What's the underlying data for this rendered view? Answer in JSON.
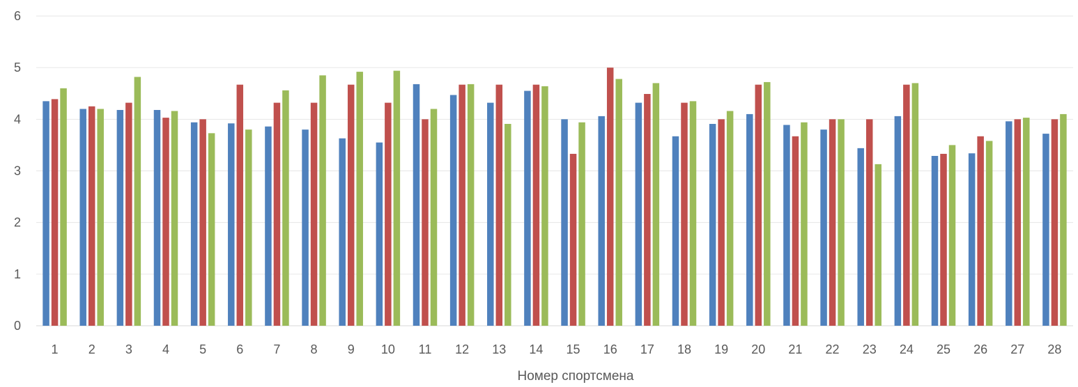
{
  "chart_data": {
    "type": "bar",
    "title": "",
    "xlabel": "Номер спортсмена",
    "ylabel": "",
    "ylim": [
      0,
      6
    ],
    "yticks": [
      0,
      1,
      2,
      3,
      4,
      5,
      6
    ],
    "grid": true,
    "legend": "none",
    "categories": [
      "1",
      "2",
      "3",
      "4",
      "5",
      "6",
      "7",
      "8",
      "9",
      "10",
      "11",
      "12",
      "13",
      "14",
      "15",
      "16",
      "17",
      "18",
      "19",
      "20",
      "21",
      "22",
      "23",
      "24",
      "25",
      "26",
      "27",
      "28"
    ],
    "series": [
      {
        "color": "#4F81BD",
        "values": [
          4.35,
          4.2,
          4.18,
          4.18,
          3.94,
          3.92,
          3.86,
          3.8,
          3.63,
          3.55,
          4.68,
          4.47,
          4.32,
          4.55,
          4.0,
          4.06,
          4.32,
          3.67,
          3.91,
          4.1,
          3.89,
          3.8,
          3.44,
          4.06,
          3.29,
          3.34,
          3.96,
          3.72
        ]
      },
      {
        "color": "#C0504D",
        "values": [
          4.39,
          4.25,
          4.32,
          4.03,
          4.0,
          4.67,
          4.32,
          4.32,
          4.67,
          4.32,
          4.0,
          4.67,
          4.67,
          4.67,
          3.33,
          5.0,
          4.49,
          4.32,
          4.0,
          4.67,
          3.67,
          4.0,
          4.0,
          4.67,
          3.33,
          3.67,
          4.0,
          4.0
        ]
      },
      {
        "color": "#9BBB59",
        "values": [
          4.6,
          4.2,
          4.82,
          4.16,
          3.73,
          3.8,
          4.56,
          4.85,
          4.92,
          4.94,
          4.2,
          4.68,
          3.91,
          4.64,
          3.94,
          4.78,
          4.7,
          4.35,
          4.16,
          4.72,
          3.94,
          4.0,
          3.13,
          4.7,
          3.5,
          3.58,
          4.03,
          4.1
        ]
      }
    ]
  }
}
